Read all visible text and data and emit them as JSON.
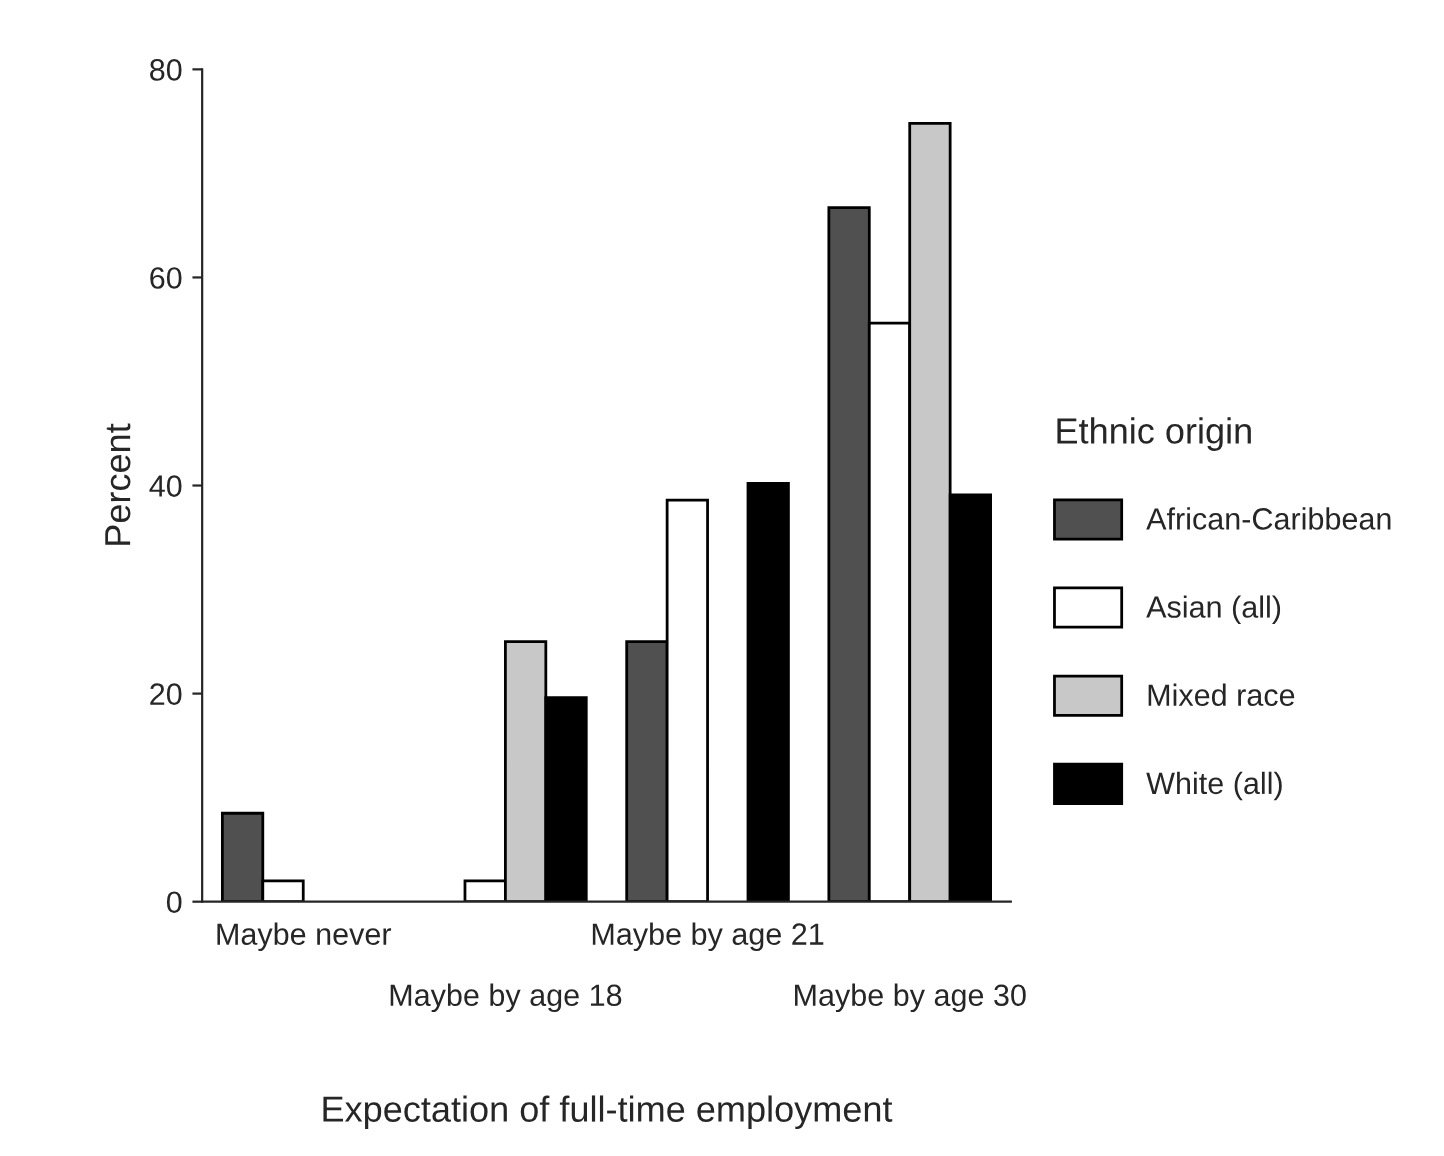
{
  "chart_data": {
    "type": "bar",
    "xlabel": "Expectation of full-time employment",
    "ylabel": "Percent",
    "legend_title": "Ethnic origin",
    "categories": [
      "Maybe never",
      "Maybe by age 18",
      "Maybe by age 21",
      "Maybe by age 30"
    ],
    "series": [
      {
        "name": "African-Caribbean",
        "color": "#505050",
        "values": [
          8.5,
          null,
          25,
          66.7
        ]
      },
      {
        "name": "Asian (all)",
        "color": "#ffffff",
        "values": [
          2,
          2,
          38.6,
          55.6
        ]
      },
      {
        "name": "Mixed race",
        "color": "#c8c8c8",
        "values": [
          null,
          25,
          null,
          74.8
        ]
      },
      {
        "name": "White (all)",
        "color": "#000000",
        "values": [
          null,
          19.6,
          40.2,
          39.1
        ]
      }
    ],
    "ylim": [
      0,
      80
    ],
    "yticks": [
      0,
      20,
      40,
      60,
      80
    ],
    "grid": false,
    "legend": "right"
  }
}
